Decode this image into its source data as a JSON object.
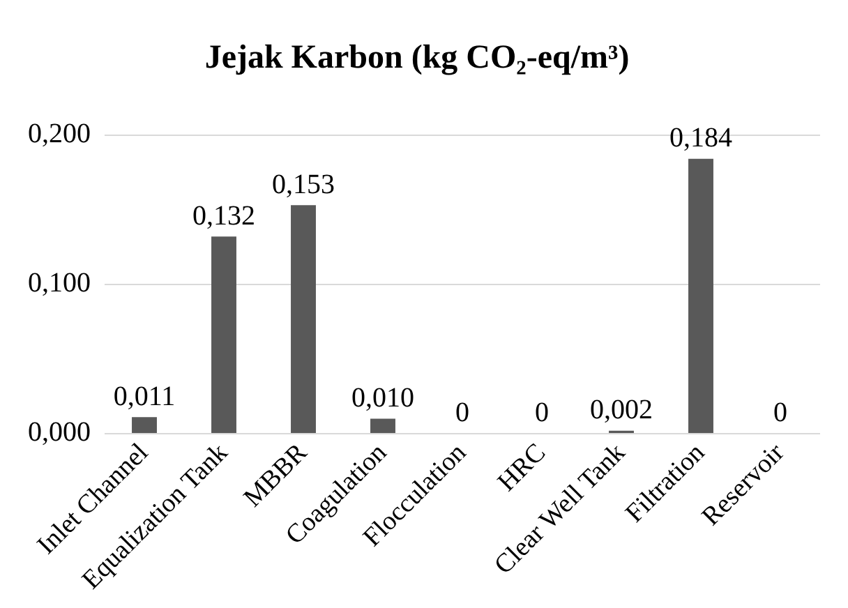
{
  "chart_data": {
    "type": "bar",
    "title": "Jejak Karbon (kg CO₂-eq/m³)",
    "categories": [
      "Inlet Channel",
      "Equalization Tank",
      "MBBR",
      "Coagulation",
      "Flocculation",
      "HRC",
      "Clear Well Tank",
      "Filtration",
      "Reservoir"
    ],
    "values": [
      0.011,
      0.132,
      0.153,
      0.01,
      0,
      0,
      0.002,
      0.184,
      0
    ],
    "value_labels": [
      "0,011",
      "0,132",
      "0,153",
      "0,010",
      "0",
      "0",
      "0,002",
      "0,184",
      "0"
    ],
    "color": "#595959",
    "ylim": [
      0,
      0.2
    ],
    "yticks": [
      {
        "value": 0,
        "label": "0,000"
      },
      {
        "value": 0.1,
        "label": "0,100"
      },
      {
        "value": 0.2,
        "label": "0,200"
      }
    ],
    "grid": "y",
    "legend": false
  }
}
